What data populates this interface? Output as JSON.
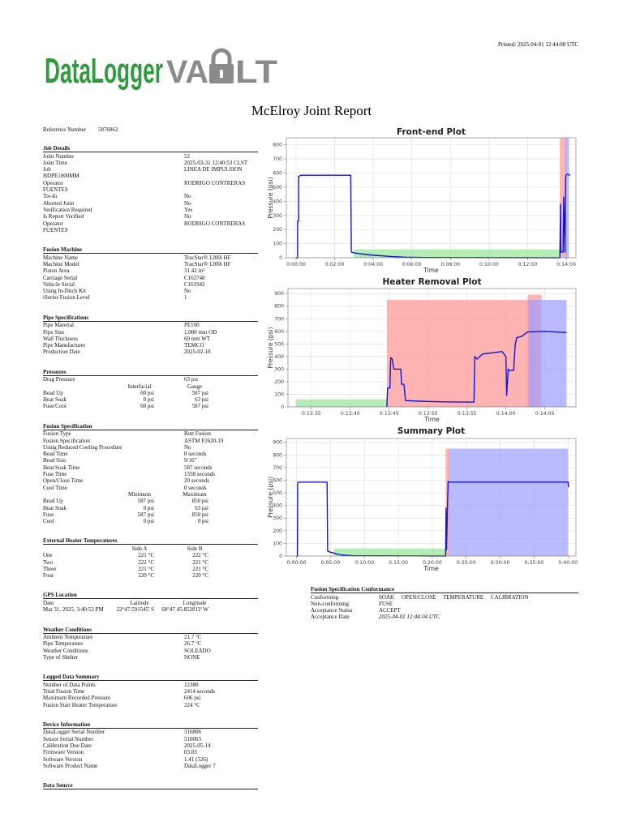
{
  "header": {
    "printed": "Printed: 2025-04-01 12:44:08 UTC",
    "logo_left": "DataLogger",
    "logo_mid": "VA",
    "logo_right": "LT"
  },
  "title": "McElroy Joint Report",
  "reference": [
    "Reference Number",
    "5876862"
  ],
  "sections": [
    {
      "title": "Job Details",
      "rows": [
        [
          "Joint Number",
          "52"
        ],
        [
          "Joint Time",
          "2025-03-31 12:40:53 CLST"
        ],
        [
          "Job",
          "LINEA DE IMPULSION"
        ],
        [
          "HDPE1000MM"
        ],
        [
          "Operator",
          "RODRIGO CONTRERAS"
        ],
        [
          "FUENTES"
        ],
        [
          "Tie-In",
          "No"
        ],
        [
          "Aborted Joint",
          "No"
        ],
        [
          "Verification Required",
          "Yes"
        ],
        [
          "Is Report Verified",
          "No"
        ],
        [
          "Operator",
          "RODRIGO CONTRERAS"
        ],
        [
          "FUENTES"
        ]
      ]
    },
    {
      "title": "Fusion Machine",
      "rows": [
        [
          "Machine Name",
          "TracStar® 1200i HF"
        ],
        [
          "Machine Model",
          "TracStar® 1200i HF"
        ],
        [
          "Piston Area",
          "31.42 in²"
        ],
        [
          "Carriage Serial",
          "C162748"
        ],
        [
          "Vehicle Serial",
          "C161942"
        ],
        [
          "Using In-Ditch Kit",
          "No"
        ],
        [
          "iSeries Fusion Level",
          "1"
        ]
      ]
    },
    {
      "title": "Pipe Specifications",
      "rows": [
        [
          "Pipe Material",
          "PE100"
        ],
        [
          "Pipe Size",
          "1,000 mm OD"
        ],
        [
          "Wall Thickness",
          "60 mm WT"
        ],
        [
          "Pipe Manufacturer",
          "TEMCO"
        ],
        [
          "Production Date",
          "2025-02-18"
        ]
      ]
    },
    {
      "title": "Pressures",
      "rows": [
        [
          "Drag Pressure",
          "63 psi"
        ]
      ],
      "table": {
        "columns": [
          "Interfacial",
          "Gauge"
        ],
        "rows": [
          [
            "Bead Up",
            "60 psi",
            "587 psi"
          ],
          [
            "Heat Soak",
            "0 psi",
            "63 psi"
          ],
          [
            "Fuse/Cool",
            "60 psi",
            "587 psi"
          ]
        ]
      }
    },
    {
      "title": "Fusion Specification",
      "rows": [
        [
          "Fusion Type",
          "Butt Fusion"
        ],
        [
          "Fusion Specification",
          "ASTM F2620-19"
        ],
        [
          "Using Reduced Cooling Procedure",
          "No"
        ],
        [
          "Bead Time",
          "0 seconds"
        ],
        [
          "Bead Size",
          "9/16\""
        ],
        [
          "Heat/Soak Time",
          "587 seconds"
        ],
        [
          "Fuse Time",
          "1558 seconds"
        ],
        [
          "Open/Close Time",
          "20 seconds"
        ],
        [
          "Cool Time",
          "0 seconds"
        ]
      ],
      "table": {
        "columns": [
          "Minimum",
          "Maximum"
        ],
        "rows": [
          [
            "Bead Up",
            "587 psi",
            "850 psi"
          ],
          [
            "Heat Soak",
            "0 psi",
            "63 psi"
          ],
          [
            "Fuse",
            "587 psi",
            "850 psi"
          ],
          [
            "Cool",
            "0 psi",
            "0 psi"
          ]
        ]
      }
    },
    {
      "title": "External Heater Temperatures",
      "rows": [],
      "table": {
        "columns": [
          "Side A",
          "Side B"
        ],
        "rows": [
          [
            "One",
            "221 °C",
            "222 °C"
          ],
          [
            "Two",
            "222 °C",
            "221 °C"
          ],
          [
            "Three",
            "221 °C",
            "221 °C"
          ],
          [
            "Four",
            "220 °C",
            "220 °C"
          ]
        ]
      }
    },
    {
      "title": "GPS Location",
      "rows": [],
      "table": {
        "columns": [
          "Date",
          "Latitude",
          "Longitude"
        ],
        "rows": [
          [
            "Mar 31, 2025, 3:40:53 PM",
            "22°47.591545' S",
            "68°47 45.852812' W"
          ]
        ]
      }
    },
    {
      "title": "Weather Conditions",
      "rows": [
        [
          "Ambient Temperature",
          "21.7 °C"
        ],
        [
          "Pipe Temperature",
          "26.7 °C"
        ],
        [
          "Weather Conditions",
          "SOLEADO"
        ],
        [
          "Type of Shelter",
          "NONE"
        ]
      ]
    },
    {
      "title": "Logged Data Summary",
      "rows": [
        [
          "Number of Data Points",
          "12380"
        ],
        [
          "Total Fusion Time",
          "2414 seconds"
        ],
        [
          "Maximum Recorded Pressure",
          "606 psi"
        ],
        [
          "Fusion Start Heater Temperature",
          "224 °C"
        ]
      ]
    },
    {
      "title": "Device Information",
      "rows": [
        [
          "DataLogger Serial Number",
          "316806"
        ],
        [
          "Sensor Serial Number",
          "510003"
        ],
        [
          "Calibration Due Date",
          "2025-05-14"
        ],
        [
          "Firmware Version",
          "03.03"
        ],
        [
          "Software Version",
          "1.41 (526)"
        ],
        [
          "Software Product Name",
          "DataLogger 7"
        ]
      ]
    },
    {
      "title": "Data Source",
      "rows": []
    }
  ],
  "conformance": {
    "title": "Fusion Specification Conformance",
    "rows": [
      [
        "Conforming",
        [
          "SOAK",
          "OPEN/CLOSE",
          "TEMPERATURE",
          "CALIBRATION"
        ]
      ],
      [
        "Non-conforming",
        [
          "FUSE"
        ]
      ],
      [
        "Acceptance Status",
        [
          "ACCEPT"
        ]
      ],
      [
        "Acceptance Date",
        [
          "2025-04-01 12:44:04 UTC"
        ]
      ]
    ]
  },
  "chart_data": [
    {
      "type": "line",
      "title": "Front-end Plot",
      "x_label": "Time",
      "y_label": "Pressure (psi)",
      "grid": true,
      "color": "#1414d6",
      "xlim": [
        -30,
        870
      ],
      "ylim": [
        0,
        850
      ],
      "xticks": [
        {
          "value": 0,
          "label": "0:00:00"
        },
        {
          "value": 120,
          "label": "0:02:00"
        },
        {
          "value": 240,
          "label": "0:04:00"
        },
        {
          "value": 360,
          "label": "0:06:00"
        },
        {
          "value": 480,
          "label": "0:08:00"
        },
        {
          "value": 600,
          "label": "0:10:00"
        },
        {
          "value": 720,
          "label": "0:12:00"
        },
        {
          "value": 840,
          "label": "0:14:00"
        }
      ],
      "yticks": [
        0,
        100,
        200,
        300,
        400,
        500,
        600,
        700,
        800
      ],
      "regions": [
        {
          "x": [
            180,
            822
          ],
          "y": [
            0,
            60
          ],
          "color": "#9be89b"
        },
        {
          "x": [
            820,
            838
          ],
          "y": [
            0,
            850
          ],
          "color": "#ff9a9a"
        },
        {
          "x": [
            836,
            848
          ],
          "y": [
            0,
            850
          ],
          "color": "#a3a3ff"
        }
      ],
      "x": [
        0,
        5,
        5,
        8,
        8,
        15,
        100,
        170,
        172,
        180,
        200,
        240,
        300,
        340,
        400,
        820,
        822,
        823,
        830,
        832,
        836,
        838,
        840,
        845,
        850,
        852
      ],
      "values": [
        0,
        0,
        260,
        260,
        575,
        585,
        585,
        585,
        40,
        35,
        28,
        18,
        8,
        4,
        2,
        0,
        380,
        40,
        40,
        430,
        40,
        560,
        590,
        592,
        585,
        585
      ]
    },
    {
      "type": "line",
      "title": "Heater Removal Plot",
      "x_label": "Time",
      "y_label": "Pressure (psi)",
      "grid": true,
      "color": "#1414d6",
      "xlim": [
        812,
        849
      ],
      "ylim": [
        0,
        940
      ],
      "xticks": [
        {
          "value": 815,
          "label": "0:13:35"
        },
        {
          "value": 820,
          "label": "0:13:40"
        },
        {
          "value": 825,
          "label": "0:13:45"
        },
        {
          "value": 830,
          "label": "0:13:50"
        },
        {
          "value": 835,
          "label": "0:13:55"
        },
        {
          "value": 840,
          "label": "0:14:00"
        },
        {
          "value": 845,
          "label": "0:14:05"
        }
      ],
      "yticks": [
        0,
        100,
        200,
        300,
        400,
        500,
        600,
        700,
        800,
        900
      ],
      "regions": [
        {
          "x": [
            813,
            824.8
          ],
          "y": [
            0,
            60
          ],
          "color": "#9be89b"
        },
        {
          "x": [
            824.7,
            844.3
          ],
          "y": [
            0,
            850
          ],
          "color": "#ff9a9a"
        },
        {
          "x": [
            842.8,
            844.6
          ],
          "y": [
            0,
            890
          ],
          "color": "#ff9a9a"
        },
        {
          "x": [
            842.9,
            847.8
          ],
          "y": [
            0,
            850
          ],
          "color": "#a3a3ff"
        }
      ],
      "x": [
        824.7,
        824.8,
        825.1,
        825.2,
        825.4,
        825.6,
        826.5,
        826.6,
        826.9,
        827.1,
        829,
        832,
        835.9,
        836,
        836.3,
        837,
        839.5,
        840,
        840.1,
        840.3,
        840.4,
        841,
        841.2,
        841.4,
        842,
        842.8,
        845,
        847.8
      ],
      "values": [
        0,
        150,
        150,
        390,
        380,
        300,
        300,
        180,
        180,
        50,
        45,
        40,
        38,
        400,
        380,
        420,
        440,
        400,
        90,
        300,
        290,
        290,
        500,
        550,
        560,
        595,
        600,
        590
      ]
    },
    {
      "type": "line",
      "title": "Summary Plot",
      "x_label": "Time",
      "y_label": "Pressure (psi)",
      "grid": true,
      "color": "#1414d6",
      "xlim": [
        -90,
        2470
      ],
      "ylim": [
        0,
        930
      ],
      "xticks": [
        {
          "value": 0,
          "label": "0:00:00"
        },
        {
          "value": 300,
          "label": "0:05:00"
        },
        {
          "value": 600,
          "label": "0:10:00"
        },
        {
          "value": 900,
          "label": "0:15:00"
        },
        {
          "value": 1200,
          "label": "0:20:00"
        },
        {
          "value": 1500,
          "label": "0:25:00"
        },
        {
          "value": 1800,
          "label": "0:30:00"
        },
        {
          "value": 2100,
          "label": "0:35:00"
        },
        {
          "value": 2400,
          "label": "0:40:00"
        }
      ],
      "yticks": [
        0,
        100,
        200,
        300,
        400,
        500,
        600,
        700,
        800,
        900
      ],
      "regions": [
        {
          "x": [
            330,
            1318
          ],
          "y": [
            0,
            60
          ],
          "color": "#9be89b"
        },
        {
          "x": [
            1318,
            1350
          ],
          "y": [
            0,
            850
          ],
          "color": "#ff9a9a"
        },
        {
          "x": [
            1345,
            2400
          ],
          "y": [
            0,
            850
          ],
          "color": "#a3a3ff"
        }
      ],
      "x": [
        0,
        8,
        10,
        15,
        270,
        275,
        300,
        350,
        400,
        500,
        1318,
        1322,
        1326,
        1335,
        1340,
        1345,
        1400,
        1800,
        2400,
        2405
      ],
      "values": [
        0,
        0,
        580,
        585,
        585,
        40,
        30,
        18,
        8,
        3,
        0,
        380,
        50,
        420,
        590,
        585,
        585,
        585,
        585,
        545
      ]
    }
  ]
}
